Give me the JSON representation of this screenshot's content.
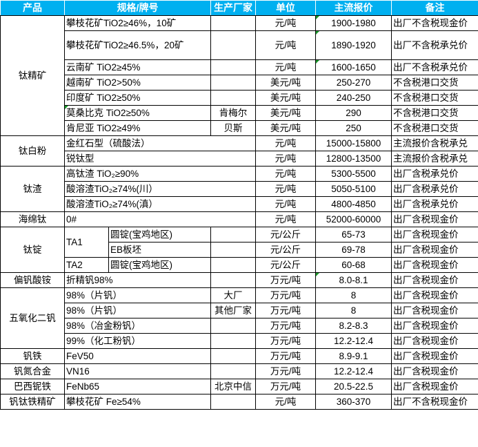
{
  "header": {
    "product": "产品",
    "spec": "规格/牌号",
    "producer": "生产厂家",
    "unit": "单位",
    "price": "主流报价",
    "note": "备注"
  },
  "marker_color": "#1a9a2a",
  "header_bg": "#00B0F0",
  "groups": [
    {
      "product": "钛精矿",
      "items": [
        {
          "spec": "攀枝花矿TiO2≥46%，10矿",
          "producer": "",
          "unit": "元/吨",
          "price": "1900-1980",
          "note": "出厂不含税现金价"
        },
        {
          "spec": "攀枝花矿TiO2≥46.5%，20矿",
          "producer": "",
          "unit": "元/吨",
          "price": "1890-1920",
          "note": "出厂不含税承兑价"
        },
        {
          "spec": "云南矿 TiO2≥45%",
          "producer": "",
          "unit": "元/吨",
          "price": "1600-1650",
          "note": "出厂不含税承兑价"
        },
        {
          "spec": "越南矿 TiO2>50%",
          "producer": "",
          "unit": "美元/吨",
          "price": "250-270",
          "note": "不含税港口交货"
        },
        {
          "spec": "印度矿 TiO2≥50%",
          "producer": "",
          "unit": "美元/吨",
          "price": "240-250",
          "note": "不含税港口交货"
        },
        {
          "spec": "莫桑比克 TiO2≥50%",
          "producer": "肯梅尔",
          "unit": "美元/吨",
          "price": "290",
          "note": "不含税港口交货"
        },
        {
          "spec": "肯尼亚 TiO2≥49%",
          "producer": "贝斯",
          "unit": "美元/吨",
          "price": "250",
          "note": "不含税港口交货"
        }
      ]
    },
    {
      "product": "钛白粉",
      "items": [
        {
          "spec": "金红石型（硫酸法）",
          "unit": "元/吨",
          "price": "15000-15800",
          "note": "主流报价含税承兑"
        },
        {
          "spec": "锐钛型",
          "unit": "元/吨",
          "price": "12800-13500",
          "note": "主流报价含税承兑"
        }
      ]
    },
    {
      "product": "钛渣",
      "items": [
        {
          "spec": "高钛渣 TiO₂≥90%",
          "unit": "元/吨",
          "price": "5300-5500",
          "note": "出厂含税承兑价"
        },
        {
          "spec": "酸溶渣TiO₂≥74%(川）",
          "unit": "元/吨",
          "price": "5050-5100",
          "note": "出厂含税承兑价"
        },
        {
          "spec": "酸溶渣TiO₂≥74%(滇）",
          "unit": "元/吨",
          "price": "4800-4850",
          "note": "出厂含税承兑价"
        }
      ]
    },
    {
      "product": "海绵钛",
      "items": [
        {
          "spec": "0#",
          "unit": "元/吨",
          "price": "52000-60000",
          "note": "出厂含税现金价"
        }
      ]
    },
    {
      "product": "钛锭",
      "items": [
        {
          "grade": "TA1",
          "spec": "圆锭(宝鸡地区)",
          "producer": "",
          "unit": "元/公斤",
          "price": "65-73",
          "note": "出厂含税现金价"
        },
        {
          "spec": "EB板坯",
          "producer": "",
          "unit": "元/公斤",
          "price": "69-78",
          "note": "出厂含税现金价"
        },
        {
          "grade": "TA2",
          "spec": "圆锭(宝鸡地区)",
          "producer": "",
          "unit": "元/公斤",
          "price": "60-68",
          "note": "出厂含税现金价"
        }
      ]
    },
    {
      "product": "偏钒酸铵",
      "items": [
        {
          "spec": "折精钒98%",
          "producer": "",
          "unit": "万元/吨",
          "price": "8.0-8.1",
          "note": "出厂含税现金价"
        }
      ]
    },
    {
      "product": "五氧化二钒",
      "items": [
        {
          "spec": "98%（片钒）",
          "producer": "大厂",
          "unit": "万元/吨",
          "price": "8",
          "note": "出厂含税现金价"
        },
        {
          "spec": "98%（片钒）",
          "producer": "其他厂家",
          "unit": "万元/吨",
          "price": "8",
          "note": "出厂含税现金价"
        },
        {
          "spec": "98%（冶金粉钒）",
          "producer": "",
          "unit": "万元/吨",
          "price": "8.2-8.3",
          "note": "出厂含税现金价"
        },
        {
          "spec": "99%（化工粉钒）",
          "producer": "",
          "unit": "万元/吨",
          "price": "12.2-12.4",
          "note": "出厂含税现金价"
        }
      ]
    },
    {
      "product": "钒铁",
      "items": [
        {
          "spec": "FeV50",
          "producer": "",
          "unit": "万元/吨",
          "price": "8.9-9.1",
          "note": "出厂含税现金价"
        }
      ]
    },
    {
      "product": "钒氮合金",
      "items": [
        {
          "spec": "VN16",
          "producer": "",
          "unit": "万元/吨",
          "price": "12.2-12.4",
          "note": "出厂含税现金价"
        }
      ]
    },
    {
      "product": "巴西铌铁",
      "items": [
        {
          "spec": "FeNb65",
          "producer": "北京中信",
          "unit": "万元/吨",
          "price": "20.5-22.5",
          "note": "出厂含税现金价"
        }
      ]
    },
    {
      "product": "钒钛铁精矿",
      "items": [
        {
          "spec": "攀枝花矿 Fe≥54%",
          "producer": "",
          "unit": "元/吨",
          "price": "360-370",
          "note": "出厂不含税现金价"
        }
      ]
    }
  ]
}
